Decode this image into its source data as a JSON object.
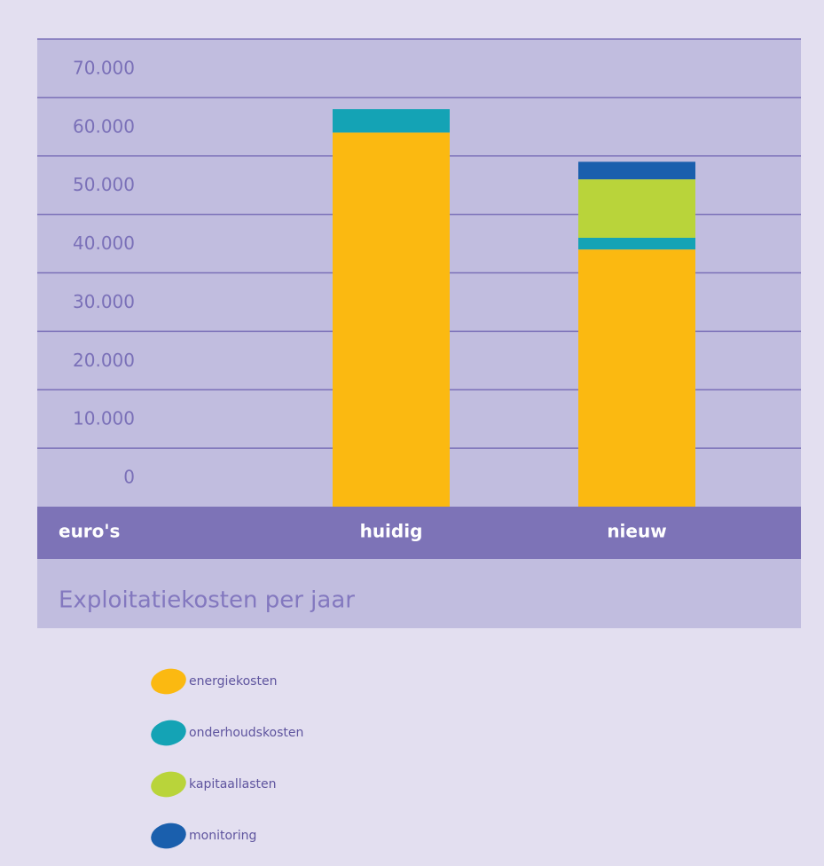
{
  "chart_data": {
    "type": "stacked_bar",
    "title": "Exploitatiekosten per jaar",
    "ylabel": "euro's",
    "categories": [
      "huidig",
      "nieuw"
    ],
    "series": [
      {
        "name": "energiekosten",
        "color": "#fbb911",
        "values": [
          64000,
          44000
        ]
      },
      {
        "name": "onderhoudskosten",
        "color": "#14a3b5",
        "values": [
          4000,
          2000
        ]
      },
      {
        "name": "kapitaallasten",
        "color": "#b9d43a",
        "values": [
          0,
          10000
        ]
      },
      {
        "name": "monitoring",
        "color": "#1a5fad",
        "values": [
          0,
          3000
        ]
      }
    ],
    "ylim": [
      0,
      80000
    ],
    "yticks": [
      {
        "value": 0,
        "label": "0"
      },
      {
        "value": 10000,
        "label": "10.000"
      },
      {
        "value": 20000,
        "label": "20.000"
      },
      {
        "value": 30000,
        "label": "30.000"
      },
      {
        "value": 40000,
        "label": "40.000"
      },
      {
        "value": 50000,
        "label": "50.000"
      },
      {
        "value": 60000,
        "label": "60.000"
      },
      {
        "value": 70000,
        "label": "70.000"
      }
    ],
    "grid": true
  }
}
